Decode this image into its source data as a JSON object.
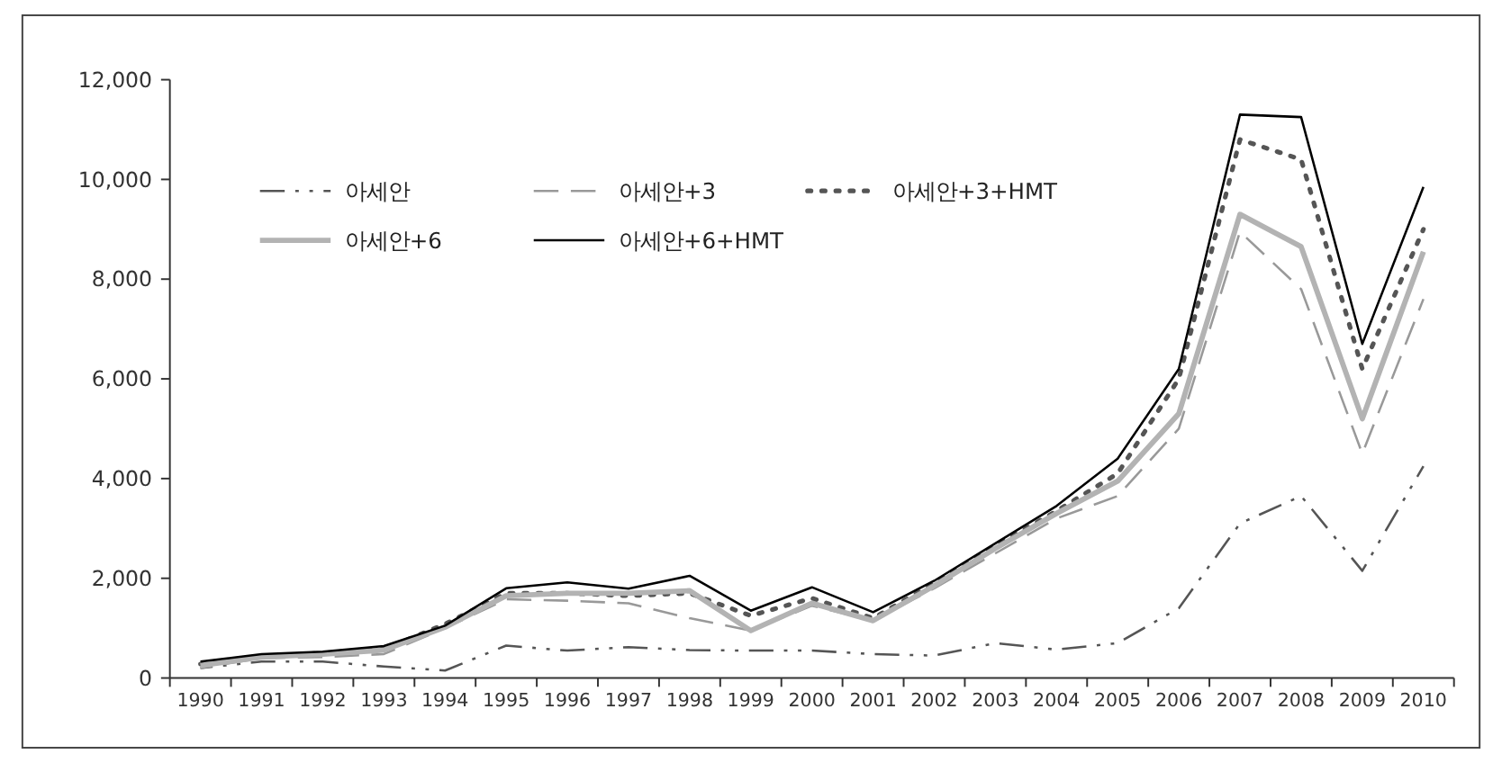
{
  "chart_data": {
    "type": "line",
    "categories": [
      "1990",
      "1991",
      "1992",
      "1993",
      "1994",
      "1995",
      "1996",
      "1997",
      "1998",
      "1999",
      "2000",
      "2001",
      "2002",
      "2003",
      "2004",
      "2005",
      "2006",
      "2007",
      "2008",
      "2009",
      "2010"
    ],
    "ylim": [
      0,
      12000
    ],
    "yticks": [
      {
        "value": 0,
        "label": "0"
      },
      {
        "value": 2000,
        "label": "2,000"
      },
      {
        "value": 4000,
        "label": "4,000"
      },
      {
        "value": 6000,
        "label": "6,000"
      },
      {
        "value": 8000,
        "label": "8,000"
      },
      {
        "value": 10000,
        "label": "10,000"
      },
      {
        "value": 12000,
        "label": "12,000"
      }
    ],
    "legend": "top left",
    "grid": false,
    "series": [
      {
        "name": "아세안",
        "color": "#555555",
        "line_style": "dashdot",
        "values": [
          200,
          330,
          330,
          230,
          150,
          650,
          550,
          620,
          560,
          550,
          550,
          480,
          450,
          700,
          570,
          700,
          1400,
          3100,
          3650,
          2150,
          4250
        ]
      },
      {
        "name": "아세안+3",
        "color": "#999999",
        "line_style": "dashed",
        "values": [
          200,
          400,
          420,
          480,
          1000,
          1580,
          1550,
          1500,
          1200,
          950,
          1450,
          1150,
          1800,
          2500,
          3200,
          3650,
          5000,
          8950,
          7800,
          4500,
          7600
        ]
      },
      {
        "name": "아세안+3+HMT",
        "color": "#555555",
        "line_style": "dotted",
        "values": [
          280,
          430,
          500,
          580,
          1080,
          1700,
          1700,
          1650,
          1700,
          1250,
          1600,
          1200,
          1900,
          2650,
          3350,
          4100,
          6000,
          10800,
          10400,
          6200,
          9000
        ]
      },
      {
        "name": "아세안+6",
        "color": "#b3b3b3",
        "line_style": "solid",
        "values": [
          250,
          420,
          480,
          560,
          1020,
          1650,
          1700,
          1700,
          1750,
          950,
          1500,
          1150,
          1850,
          2600,
          3300,
          3950,
          5300,
          9300,
          8650,
          5200,
          8550
        ]
      },
      {
        "name": "아세안+6+HMT",
        "color": "#000000",
        "line_style": "solid",
        "values": [
          330,
          480,
          530,
          640,
          1050,
          1800,
          1920,
          1790,
          2050,
          1350,
          1820,
          1320,
          1950,
          2700,
          3450,
          4400,
          6200,
          11300,
          11250,
          6700,
          9850
        ]
      }
    ]
  }
}
